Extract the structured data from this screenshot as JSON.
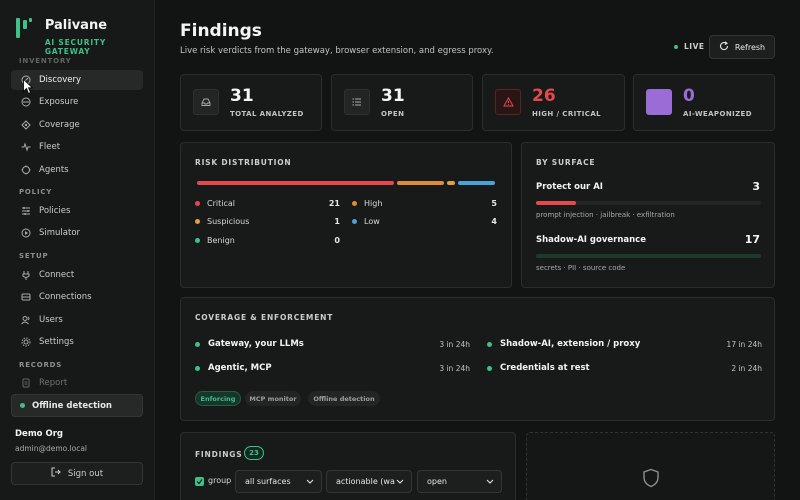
{
  "brand": {
    "name": "Palivane",
    "tagline": "AI SECURITY GATEWAY"
  },
  "sidebar": {
    "sections": {
      "inventory": "INVENTORY",
      "policy": "POLICY",
      "setup": "SETUP",
      "records": "RECORDS"
    },
    "items": [
      {
        "label": "Discovery",
        "icon": "discovery-icon"
      },
      {
        "label": "Exposure",
        "icon": "exposure-icon"
      },
      {
        "label": "Coverage",
        "icon": "coverage-icon"
      },
      {
        "label": "Fleet",
        "icon": "fleet-icon"
      },
      {
        "label": "Agents",
        "icon": "agents-icon"
      },
      {
        "label": "Policies",
        "icon": "policies-icon"
      },
      {
        "label": "Simulator",
        "icon": "simulator-icon"
      },
      {
        "label": "Connect",
        "icon": "connect-icon"
      },
      {
        "label": "Connections",
        "icon": "connections-icon"
      },
      {
        "label": "Users",
        "icon": "users-icon"
      },
      {
        "label": "Settings",
        "icon": "settings-icon"
      },
      {
        "label": "Report",
        "icon": "report-icon"
      }
    ],
    "offline": "Offline detection",
    "org": {
      "name": "Demo Org",
      "email": "admin@demo.local"
    },
    "signout": "Sign out"
  },
  "header": {
    "title": "Findings",
    "subtitle": "Live risk verdicts from the gateway, browser extension, and egress proxy.",
    "live": "LIVE",
    "refresh": "Refresh"
  },
  "stats": [
    {
      "value": "31",
      "label": "TOTAL ANALYZED",
      "icon": "inbox-icon"
    },
    {
      "value": "31",
      "label": "OPEN",
      "icon": "list-icon"
    },
    {
      "value": "26",
      "label": "HIGH / CRITICAL",
      "icon": "warning-icon",
      "color": "#e5484d"
    },
    {
      "value": "0",
      "label": "AI-WEAPONIZED",
      "icon": "weaponized-icon",
      "color": "#9b6bd6"
    }
  ],
  "risk": {
    "title": "RISK DISTRIBUTION",
    "items": [
      {
        "name": "Critical",
        "value": "21",
        "color": "#e5484d"
      },
      {
        "name": "Suspicious",
        "value": "1",
        "color": "#e0a040"
      },
      {
        "name": "Benign",
        "value": "0",
        "color": "#3fbf8a"
      },
      {
        "name": "High",
        "value": "5",
        "color": "#e08a3c"
      },
      {
        "name": "Low",
        "value": "4",
        "color": "#4aa3d8"
      }
    ]
  },
  "surface": {
    "title": "BY SURFACE",
    "items": [
      {
        "name": "Protect our AI",
        "value": "3",
        "desc": "prompt injection · jailbreak · exfiltration",
        "fraction": 0.176,
        "color": "#e5484d"
      },
      {
        "name": "Shadow-AI governance",
        "value": "17",
        "desc": "secrets · PII · source code",
        "fraction": 1.0,
        "color": "#1b3a2b"
      }
    ]
  },
  "coverage": {
    "title": "COVERAGE & ENFORCEMENT",
    "items": [
      {
        "name": "Gateway, your LLMs",
        "value": "3 in 24h"
      },
      {
        "name": "Agentic, MCP",
        "value": "3 in 24h"
      },
      {
        "name": "Shadow-AI, extension / proxy",
        "value": "17 in 24h"
      },
      {
        "name": "Credentials at rest",
        "value": "2 in 24h"
      }
    ],
    "pills": [
      "Enforcing",
      "MCP monitor",
      "Offline detection"
    ]
  },
  "findings": {
    "title": "FINDINGS",
    "count": "23",
    "group_label": "group",
    "filters": [
      "all surfaces",
      "actionable (wa",
      "open"
    ]
  }
}
